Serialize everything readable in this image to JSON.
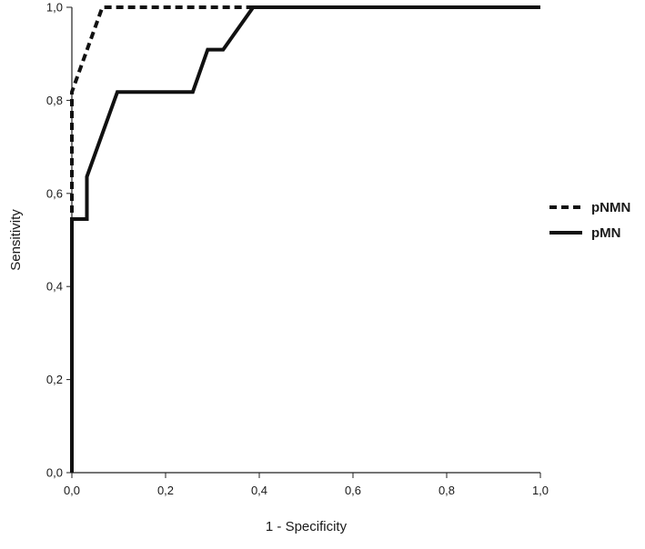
{
  "chart_data": {
    "type": "line",
    "title": "",
    "xlabel": "1 - Specificity",
    "ylabel": "Sensitivity",
    "xlim": [
      0,
      1
    ],
    "ylim": [
      0,
      1
    ],
    "x_ticks": [
      "0,0",
      "0,2",
      "0,4",
      "0,6",
      "0,8",
      "1,0"
    ],
    "y_ticks": [
      "0,0",
      "0,2",
      "0,4",
      "0,6",
      "0,8",
      "1,0"
    ],
    "grid": false,
    "legend_position": "right",
    "series": [
      {
        "name": "pNMN",
        "style": "dashed",
        "color": "#111111",
        "points": [
          [
            0,
            0
          ],
          [
            0,
            0.545
          ],
          [
            0,
            0.818
          ],
          [
            0.065,
            1.0
          ],
          [
            0.38,
            1.0
          ],
          [
            1.0,
            1.0
          ]
        ]
      },
      {
        "name": "pMN",
        "style": "solid",
        "color": "#111111",
        "points": [
          [
            0,
            0
          ],
          [
            0,
            0.545
          ],
          [
            0.032,
            0.545
          ],
          [
            0.032,
            0.636
          ],
          [
            0.097,
            0.818
          ],
          [
            0.258,
            0.818
          ],
          [
            0.29,
            0.909
          ],
          [
            0.323,
            0.909
          ],
          [
            0.387,
            1.0
          ],
          [
            1.0,
            1.0
          ]
        ]
      }
    ]
  }
}
